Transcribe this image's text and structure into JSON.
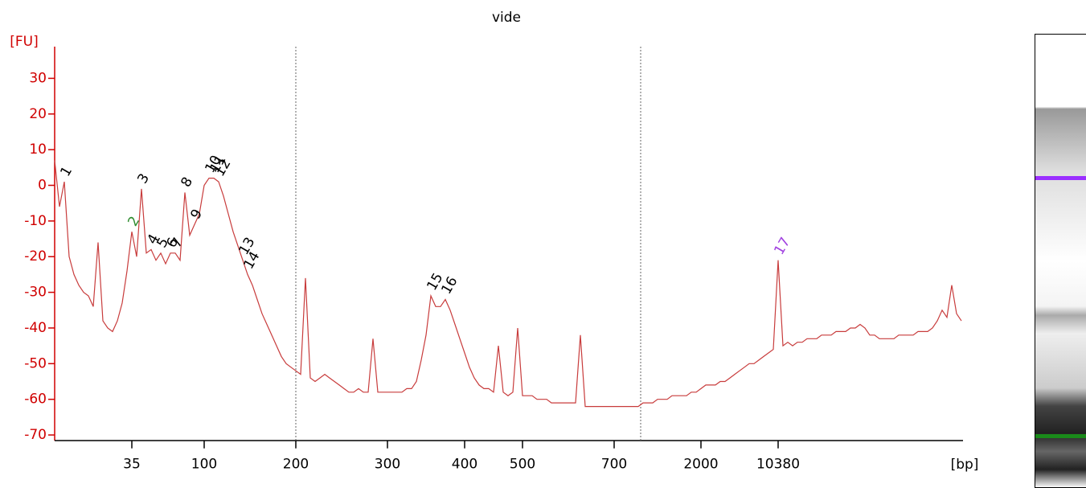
{
  "chart_data": {
    "type": "line",
    "title": "vide",
    "y_label": "[FU]",
    "x_label": "[bp]",
    "ylim": [
      -71.5,
      39
    ],
    "yticks": [
      -70,
      -60,
      -50,
      -40,
      -30,
      -20,
      -10,
      0,
      10,
      20,
      30
    ],
    "label_colors": {
      "2": "#2e8b2e",
      "17": "#a040e0"
    },
    "categories": [
      null,
      null,
      null,
      null,
      null,
      null,
      null,
      null,
      null,
      null,
      null,
      null,
      null,
      null,
      null,
      null,
      "35",
      null,
      null,
      null,
      null,
      null,
      null,
      null,
      null,
      null,
      null,
      null,
      null,
      null,
      null,
      "100",
      null,
      null,
      null,
      null,
      null,
      null,
      null,
      null,
      null,
      null,
      null,
      null,
      null,
      null,
      null,
      null,
      null,
      null,
      "200",
      null,
      null,
      null,
      null,
      null,
      null,
      null,
      null,
      null,
      null,
      null,
      null,
      null,
      null,
      null,
      null,
      null,
      null,
      "300",
      null,
      null,
      null,
      null,
      null,
      null,
      null,
      null,
      null,
      null,
      null,
      null,
      null,
      null,
      null,
      "400",
      null,
      null,
      null,
      null,
      null,
      null,
      null,
      null,
      null,
      null,
      null,
      "500",
      null,
      null,
      null,
      null,
      null,
      null,
      null,
      null,
      null,
      null,
      null,
      null,
      null,
      null,
      null,
      null,
      null,
      null,
      "700",
      null,
      null,
      null,
      null,
      null,
      null,
      null,
      null,
      null,
      null,
      null,
      null,
      null,
      null,
      null,
      null,
      null,
      "2000",
      null,
      null,
      null,
      null,
      null,
      null,
      null,
      null,
      null,
      null,
      null,
      null,
      null,
      null,
      null,
      "10380",
      null,
      null,
      null,
      null,
      null,
      null,
      null,
      null,
      null,
      null,
      null,
      null,
      null,
      null,
      null,
      null,
      null,
      null,
      null,
      null,
      null,
      null,
      null,
      null,
      null,
      null,
      null,
      null,
      null,
      null,
      null,
      null,
      null,
      null,
      null,
      null,
      null,
      null
    ],
    "point_labels": [
      null,
      null,
      "1",
      null,
      null,
      null,
      null,
      null,
      null,
      null,
      null,
      null,
      null,
      null,
      null,
      null,
      "2",
      null,
      "3",
      null,
      "4",
      null,
      "5",
      null,
      "6",
      "7",
      null,
      "8",
      null,
      "9",
      null,
      null,
      "10",
      "11",
      "12",
      null,
      null,
      null,
      null,
      "13",
      "14",
      null,
      null,
      null,
      null,
      null,
      null,
      null,
      null,
      null,
      null,
      null,
      null,
      null,
      null,
      null,
      null,
      null,
      null,
      null,
      null,
      null,
      null,
      null,
      null,
      null,
      null,
      null,
      null,
      null,
      null,
      null,
      null,
      null,
      null,
      null,
      null,
      null,
      "15",
      null,
      null,
      "16",
      null,
      null,
      null,
      null,
      null,
      null,
      null,
      null,
      null,
      null,
      null,
      null,
      null,
      null,
      null,
      null,
      null,
      null,
      null,
      null,
      null,
      null,
      null,
      null,
      null,
      null,
      null,
      null,
      null,
      null,
      null,
      null,
      null,
      null,
      null,
      null,
      null,
      null,
      null,
      null,
      null,
      null,
      null,
      null,
      null,
      null,
      null,
      null,
      null,
      null,
      null,
      null,
      null,
      null,
      null,
      null,
      null,
      null,
      null,
      null,
      null,
      null,
      null,
      null,
      null,
      null,
      null,
      null,
      "17",
      null,
      null,
      null,
      null,
      null,
      null,
      null,
      null,
      null,
      null,
      null,
      null,
      null,
      null,
      null,
      null,
      null,
      null,
      null,
      null,
      null,
      null,
      null,
      null,
      null,
      null,
      null,
      null,
      null,
      null,
      null,
      null,
      null,
      null,
      null,
      null,
      null,
      null
    ],
    "series": [
      {
        "color": "#c83c3c",
        "values": [
          7,
          -6,
          1,
          -20,
          -25,
          -28,
          -30,
          -31,
          -34,
          -16,
          -38,
          -40,
          -41,
          -38,
          -33,
          -24,
          -13,
          -20,
          -1,
          -19,
          -18,
          -21,
          -19,
          -22,
          -19,
          -19,
          -21,
          -2,
          -14,
          -11,
          -8,
          0,
          2,
          2,
          1,
          -3,
          -8,
          -13,
          -17,
          -21,
          -25,
          -28,
          -32,
          -36,
          -39,
          -42,
          -45,
          -48,
          -50,
          -51,
          -52,
          -53,
          -26,
          -54,
          -55,
          -54,
          -53,
          -54,
          -55,
          -56,
          -57,
          -58,
          -58,
          -57,
          -58,
          -58,
          -43,
          -58,
          -58,
          -58,
          -58,
          -58,
          -58,
          -57,
          -57,
          -55,
          -49,
          -42,
          -31,
          -34,
          -34,
          -32,
          -35,
          -39,
          -43,
          -47,
          -51,
          -54,
          -56,
          -57,
          -57,
          -58,
          -45,
          -58,
          -59,
          -58,
          -40,
          -59,
          -59,
          -59,
          -60,
          -60,
          -60,
          -61,
          -61,
          -61,
          -61,
          -61,
          -61,
          -42,
          -62,
          -62,
          -62,
          -62,
          -62,
          -62,
          -62,
          -62,
          -62,
          -62,
          -62,
          -62,
          -61,
          -61,
          -61,
          -60,
          -60,
          -60,
          -59,
          -59,
          -59,
          -59,
          -58,
          -58,
          -57,
          -56,
          -56,
          -56,
          -55,
          -55,
          -54,
          -53,
          -52,
          -51,
          -50,
          -50,
          -49,
          -48,
          -47,
          -46,
          -21,
          -45,
          -44,
          -45,
          -44,
          -44,
          -43,
          -43,
          -43,
          -42,
          -42,
          -42,
          -41,
          -41,
          -41,
          -40,
          -40,
          -39,
          -40,
          -42,
          -42,
          -43,
          -43,
          -43,
          -43,
          -42,
          -42,
          -42,
          -42,
          -41,
          -41,
          -41,
          -40,
          -38,
          -35,
          -37,
          -28,
          -36,
          -38
        ]
      }
    ]
  }
}
